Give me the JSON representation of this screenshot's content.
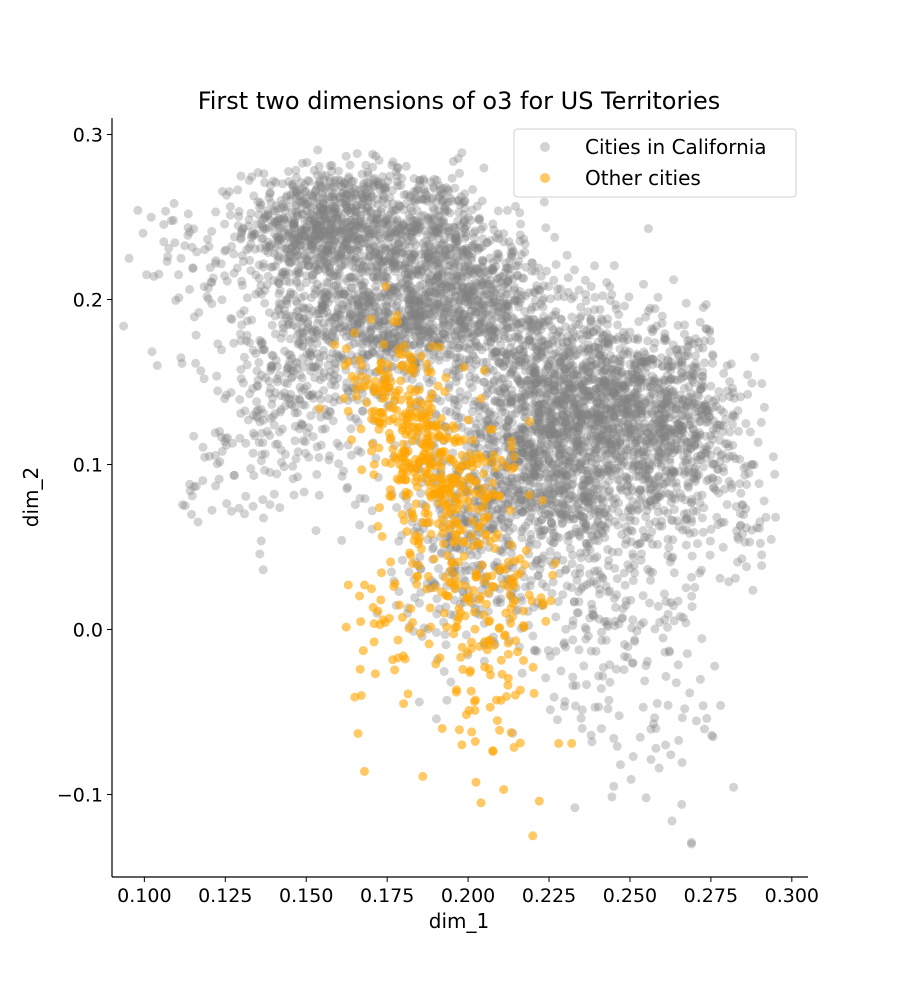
{
  "chart_data": {
    "type": "scatter",
    "title": "First two dimensions of o3 for US Territories",
    "xlabel": "dim_1",
    "ylabel": "dim_2",
    "xlim": [
      0.09,
      0.305
    ],
    "ylim": [
      -0.15,
      0.31
    ],
    "x_ticks": [
      0.1,
      0.125,
      0.15,
      0.175,
      0.2,
      0.225,
      0.25,
      0.275,
      0.3
    ],
    "x_tick_labels": [
      "0.100",
      "0.125",
      "0.150",
      "0.175",
      "0.200",
      "0.225",
      "0.250",
      "0.275",
      "0.300"
    ],
    "y_ticks": [
      -0.1,
      0.0,
      0.1,
      0.2,
      0.3
    ],
    "y_tick_labels": [
      "−0.1",
      "0.0",
      "0.1",
      "0.2",
      "0.3"
    ],
    "legend_position": "top-right",
    "grid": false,
    "series": [
      {
        "name": "Cities in California",
        "color": "#808080",
        "alpha": 0.35,
        "clusters": [
          {
            "cx": 0.155,
            "cy": 0.245,
            "sx": 0.012,
            "sy": 0.018,
            "n": 700
          },
          {
            "cx": 0.185,
            "cy": 0.24,
            "sx": 0.014,
            "sy": 0.02,
            "n": 500
          },
          {
            "cx": 0.175,
            "cy": 0.19,
            "sx": 0.015,
            "sy": 0.022,
            "n": 700
          },
          {
            "cx": 0.205,
            "cy": 0.195,
            "sx": 0.014,
            "sy": 0.022,
            "n": 550
          },
          {
            "cx": 0.225,
            "cy": 0.13,
            "sx": 0.016,
            "sy": 0.028,
            "n": 900
          },
          {
            "cx": 0.245,
            "cy": 0.14,
            "sx": 0.014,
            "sy": 0.026,
            "n": 600
          },
          {
            "cx": 0.265,
            "cy": 0.12,
            "sx": 0.011,
            "sy": 0.03,
            "n": 500
          },
          {
            "cx": 0.225,
            "cy": 0.085,
            "sx": 0.02,
            "sy": 0.025,
            "n": 600
          },
          {
            "cx": 0.145,
            "cy": 0.16,
            "sx": 0.012,
            "sy": 0.035,
            "n": 350
          },
          {
            "cx": 0.2,
            "cy": 0.04,
            "sx": 0.014,
            "sy": 0.03,
            "n": 250
          },
          {
            "cx": 0.24,
            "cy": 0.02,
            "sx": 0.016,
            "sy": 0.035,
            "n": 200
          },
          {
            "cx": 0.255,
            "cy": -0.03,
            "sx": 0.014,
            "sy": 0.035,
            "n": 70
          },
          {
            "cx": 0.13,
            "cy": 0.09,
            "sx": 0.01,
            "sy": 0.02,
            "n": 40
          },
          {
            "cx": 0.12,
            "cy": 0.22,
            "sx": 0.012,
            "sy": 0.02,
            "n": 60
          },
          {
            "cx": 0.285,
            "cy": 0.08,
            "sx": 0.006,
            "sy": 0.025,
            "n": 40
          }
        ],
        "points": [
          [
            0.098,
            0.254
          ],
          [
            0.104,
            0.16
          ],
          [
            0.106,
            0.235
          ],
          [
            0.109,
            0.248
          ],
          [
            0.114,
            0.088
          ],
          [
            0.122,
            0.087
          ],
          [
            0.295,
            0.068
          ],
          [
            0.292,
            0.068
          ],
          [
            0.287,
            0.053
          ],
          [
            0.278,
            -0.046
          ],
          [
            0.269,
            -0.129
          ],
          [
            0.269,
            -0.13
          ],
          [
            0.263,
            -0.116
          ],
          [
            0.266,
            -0.106
          ],
          [
            0.255,
            -0.102
          ],
          [
            0.245,
            -0.095
          ],
          [
            0.233,
            -0.108
          ],
          [
            0.259,
            -0.084
          ],
          [
            0.258,
            -0.072
          ],
          [
            0.261,
            -0.07
          ],
          [
            0.245,
            -0.066
          ],
          [
            0.238,
            -0.064
          ],
          [
            0.251,
            -0.077
          ],
          [
            0.258,
            -0.06
          ]
        ]
      },
      {
        "name": "Other cities",
        "color": "#FFA500",
        "alpha": 0.6,
        "clusters": [
          {
            "cx": 0.178,
            "cy": 0.14,
            "sx": 0.008,
            "sy": 0.018,
            "n": 130
          },
          {
            "cx": 0.188,
            "cy": 0.1,
            "sx": 0.008,
            "sy": 0.02,
            "n": 170
          },
          {
            "cx": 0.198,
            "cy": 0.085,
            "sx": 0.008,
            "sy": 0.02,
            "n": 90
          },
          {
            "cx": 0.193,
            "cy": 0.04,
            "sx": 0.01,
            "sy": 0.022,
            "n": 70
          },
          {
            "cx": 0.205,
            "cy": -0.02,
            "sx": 0.008,
            "sy": 0.035,
            "n": 90
          },
          {
            "cx": 0.18,
            "cy": -0.01,
            "sx": 0.008,
            "sy": 0.015,
            "n": 30
          },
          {
            "cx": 0.215,
            "cy": 0.02,
            "sx": 0.006,
            "sy": 0.015,
            "n": 30
          }
        ],
        "points": [
          [
            0.165,
            -0.041
          ],
          [
            0.167,
            -0.04
          ],
          [
            0.166,
            -0.063
          ],
          [
            0.168,
            -0.086
          ],
          [
            0.186,
            -0.089
          ],
          [
            0.204,
            -0.105
          ],
          [
            0.22,
            -0.125
          ],
          [
            0.222,
            -0.104
          ],
          [
            0.211,
            -0.097
          ],
          [
            0.164,
            0.115
          ],
          [
            0.163,
            0.162
          ],
          [
            0.17,
            0.188
          ],
          [
            0.177,
            0.187
          ],
          [
            0.2,
            0.127
          ],
          [
            0.204,
            0.14
          ],
          [
            0.205,
            0.157
          ],
          [
            0.219,
            0.126
          ],
          [
            0.224,
            0.005
          ],
          [
            0.232,
            -0.069
          ],
          [
            0.228,
            -0.069
          ],
          [
            0.18,
            -0.016
          ],
          [
            0.192,
            -0.06
          ],
          [
            0.163,
            0.027
          ],
          [
            0.168,
            0.027
          ]
        ]
      }
    ]
  }
}
